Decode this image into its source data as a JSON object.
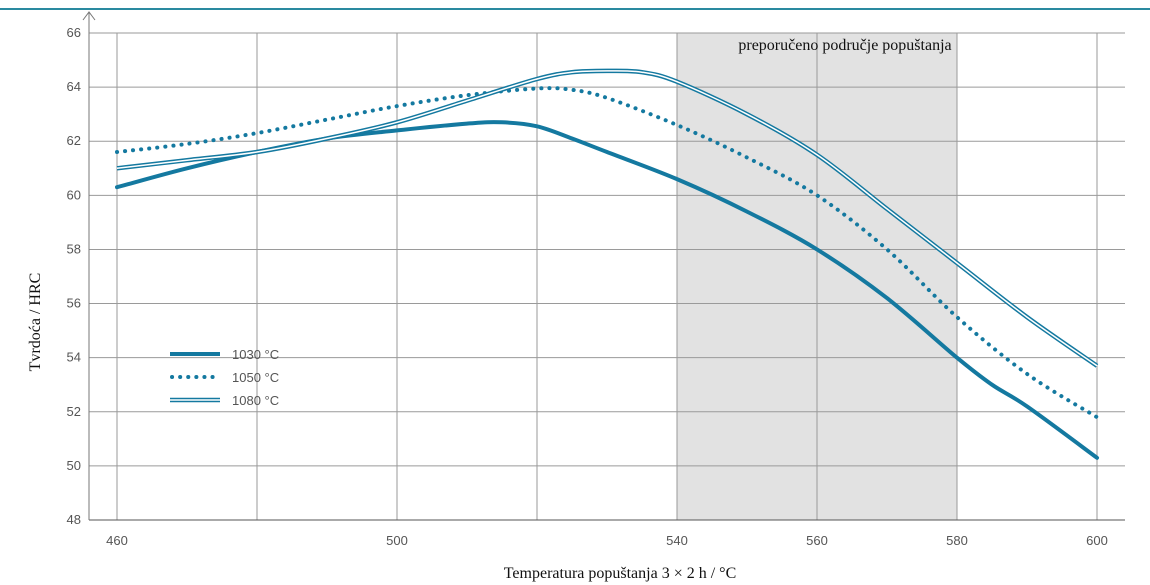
{
  "colors": {
    "top_rule": "#2a8aa0",
    "series": "#1479a0",
    "grid": "#9a9a9a",
    "band": "#e2e2e2"
  },
  "chart_data": {
    "type": "line",
    "xlabel": "Temperatura popuštanja 3 × 2 h / °C",
    "ylabel": "Tvrdoća / HRC",
    "xlim": [
      456,
      604
    ],
    "ylim": [
      48,
      66
    ],
    "x_ticks": [
      460,
      480,
      500,
      520,
      540,
      560,
      580,
      600
    ],
    "x_tick_labels": [
      "460",
      "",
      "500",
      "",
      "540",
      "560",
      "580",
      "600"
    ],
    "y_ticks": [
      48,
      50,
      52,
      54,
      56,
      58,
      60,
      62,
      64,
      66
    ],
    "y_tick_labels": [
      "48",
      "50",
      "52",
      "54",
      "56",
      "58",
      "60",
      "62",
      "64",
      "66"
    ],
    "grid": true,
    "legend_position": "lower-left",
    "band": {
      "from": 540,
      "to": 580,
      "divider": 560,
      "label": "preporučeno područje popuštanja"
    },
    "series": [
      {
        "name": "1030 °C",
        "style": "solid",
        "x": [
          460,
          470,
          480,
          490,
          500,
          510,
          515,
          520,
          525,
          530,
          540,
          550,
          560,
          570,
          580,
          585,
          590,
          600
        ],
        "y": [
          60.3,
          61.0,
          61.6,
          62.1,
          62.4,
          62.65,
          62.7,
          62.55,
          62.1,
          61.6,
          60.6,
          59.4,
          58.0,
          56.2,
          54.0,
          53.0,
          52.2,
          50.3
        ]
      },
      {
        "name": "1050 °C",
        "style": "dotted",
        "x": [
          460,
          470,
          480,
          490,
          500,
          510,
          520,
          525,
          530,
          540,
          550,
          560,
          570,
          580,
          590,
          600
        ],
        "y": [
          61.6,
          61.9,
          62.3,
          62.8,
          63.3,
          63.7,
          63.95,
          63.9,
          63.6,
          62.6,
          61.4,
          60.0,
          58.0,
          55.5,
          53.4,
          51.8
        ]
      },
      {
        "name": "1080 °C",
        "style": "double",
        "x": [
          460,
          470,
          480,
          490,
          500,
          510,
          520,
          525,
          530,
          535,
          540,
          550,
          560,
          570,
          580,
          590,
          600
        ],
        "y": [
          61.0,
          61.3,
          61.6,
          62.1,
          62.7,
          63.5,
          64.3,
          64.55,
          64.6,
          64.55,
          64.2,
          63.0,
          61.5,
          59.5,
          57.5,
          55.5,
          53.7
        ]
      }
    ]
  }
}
